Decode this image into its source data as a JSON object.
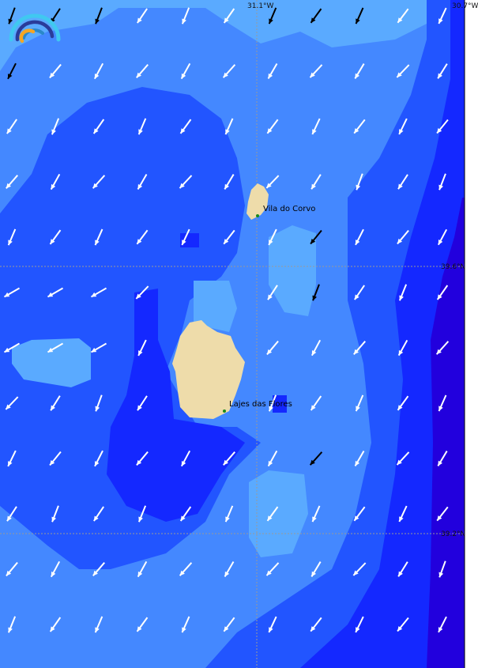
{
  "map": {
    "longitude_labels": [
      "31.1°W",
      "30.7°W"
    ],
    "latitude_labels": [
      "39.6°N",
      "39.2°N"
    ],
    "places": [
      {
        "name": "Vila do Corvo"
      },
      {
        "name": "Lajes das Flores"
      }
    ],
    "colors": {
      "level1": "#5aaaff",
      "level2": "#4488ff",
      "level3": "#2255ff",
      "level4": "#1428ff",
      "level5": "#2200dd",
      "land": "#eedcaa",
      "arrow": "#ffffff",
      "arrow_dark": "#000000"
    },
    "logo": "wave-arc-logo"
  }
}
